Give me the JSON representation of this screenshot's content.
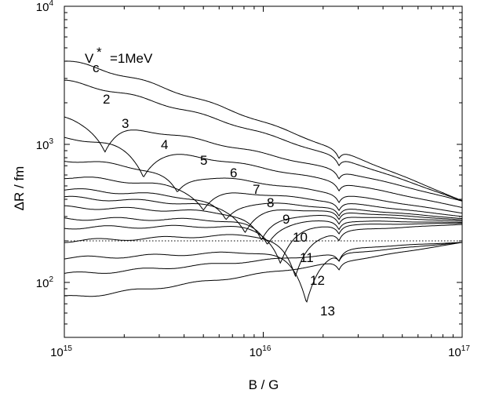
{
  "chart_data": {
    "type": "line",
    "xlabel": "B / G",
    "ylabel": "ΔR / fm",
    "x_scale": "log",
    "y_scale": "log",
    "xlim": [
      1000000000000000.0,
      1e+17
    ],
    "ylim": [
      40,
      10000
    ],
    "x_ticks": [
      {
        "base": "10",
        "exp": "15",
        "value": 1000000000000000.0
      },
      {
        "base": "10",
        "exp": "16",
        "value": 1e+16
      },
      {
        "base": "10",
        "exp": "17",
        "value": 1e+17
      }
    ],
    "y_ticks": [
      {
        "base": "10",
        "exp": "2",
        "value": 100
      },
      {
        "base": "10",
        "exp": "3",
        "value": 1000
      },
      {
        "base": "10",
        "exp": "4",
        "value": 10000
      }
    ],
    "reference_line": {
      "y": 200,
      "style": "dotted"
    },
    "curve_labels": [
      "V",
      "c",
      "*",
      "=1MeV",
      "2",
      "3",
      "4",
      "5",
      "6",
      "7",
      "8",
      "9",
      "10",
      "11",
      "12",
      "13"
    ],
    "series": [
      {
        "label_index": 0,
        "y0": 4000,
        "dip_x": null,
        "dip_y": null
      },
      {
        "label_index": 4,
        "y0": 2850,
        "dip_x": null,
        "dip_y": null
      },
      {
        "label_index": 5,
        "y0": 1580,
        "dip_x": 1600000000000000.0,
        "dip_y": 920
      },
      {
        "label_index": 6,
        "y0": 1120,
        "dip_x": 2500000000000000.0,
        "dip_y": 660
      },
      {
        "label_index": 7,
        "y0": 770,
        "dip_x": 3700000000000000.0,
        "dip_y": 520
      },
      {
        "label_index": 8,
        "y0": 580,
        "dip_x": 5000000000000000.0,
        "dip_y": 390
      },
      {
        "label_index": 9,
        "y0": 470,
        "dip_x": 6500000000000000.0,
        "dip_y": 320
      },
      {
        "label_index": 10,
        "y0": 410,
        "dip_x": 8100000000000000.0,
        "dip_y": 255
      },
      {
        "label_index": 11,
        "y0": 350,
        "dip_x": 9800000000000000.0,
        "dip_y": 210
      },
      {
        "label_index": 12,
        "y0": 290,
        "dip_x": 1.05e+16,
        "dip_y": 185
      },
      {
        "label_index": 13,
        "y0": 250,
        "dip_x": 1.22e+16,
        "dip_y": 125
      },
      {
        "label_index": 14,
        "y0": 200,
        "dip_x": 1.45e+16,
        "dip_y": 87
      },
      {
        "label_index": 15,
        "y0": 150,
        "dip_x": 1.65e+16,
        "dip_y": 56
      },
      {
        "label_index": null,
        "y0": 115,
        "dip_x": null,
        "dip_y": null
      },
      {
        "label_index": null,
        "y0": 78,
        "dip_x": null,
        "dip_y": null
      }
    ],
    "legend": "none",
    "grid": false
  }
}
